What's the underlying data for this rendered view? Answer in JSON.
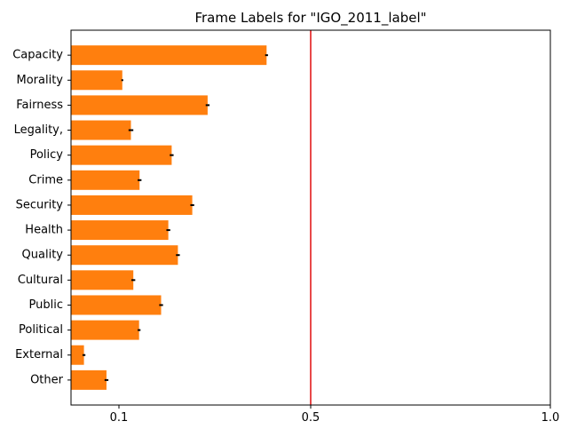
{
  "chart_data": {
    "type": "bar",
    "orientation": "horizontal",
    "title": "Frame Labels for \"IGO_2011_label\"",
    "xlabel": "",
    "ylabel": "",
    "xlim": [
      0.0,
      1.0
    ],
    "xticks": [
      0.1,
      0.5,
      1.0
    ],
    "xtick_labels": [
      "0.1",
      "0.5",
      "1.0"
    ],
    "grid": false,
    "categories": [
      "Capacity",
      "Morality",
      "Fairness",
      "Legality,",
      "Policy",
      "Crime",
      "Security",
      "Health",
      "Quality",
      "Cultural",
      "Public",
      "Political",
      "External",
      "Other"
    ],
    "values": [
      0.408,
      0.107,
      0.285,
      0.125,
      0.21,
      0.143,
      0.253,
      0.203,
      0.223,
      0.13,
      0.188,
      0.142,
      0.027,
      0.074
    ],
    "errors": [
      0.003,
      0.002,
      0.004,
      0.005,
      0.004,
      0.004,
      0.004,
      0.004,
      0.004,
      0.004,
      0.004,
      0.003,
      0.003,
      0.004
    ],
    "reference_line": {
      "x": 0.5,
      "color": "#e31a1c"
    },
    "bar_color": "#ff7f0e",
    "error_color": "#000000"
  }
}
